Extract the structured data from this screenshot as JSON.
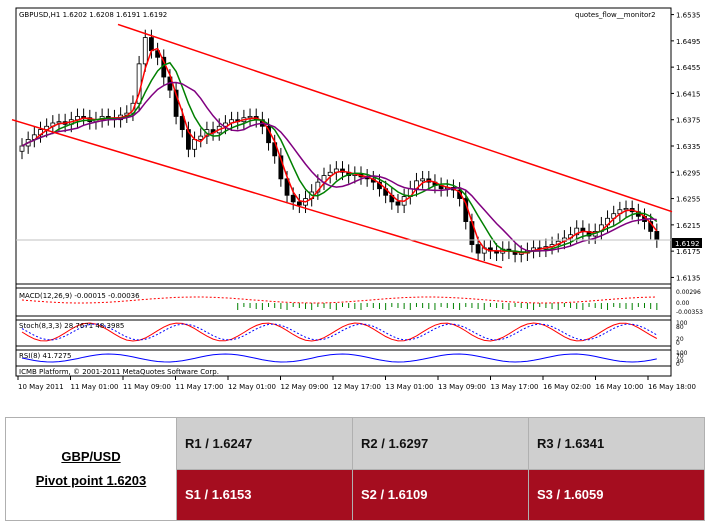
{
  "chart_data": {
    "type": "candlestick",
    "symbol_header": "GBPUSD,H1  1.6202 1.6208 1.6191 1.6192",
    "indicator_label": "quotes_flow__monitor2",
    "current_price_label": "1.6192",
    "copyright": "ICMB Platform, © 2001-2011 MetaQuotes Software Corp.",
    "price_axis": [
      "1.6535",
      "1.6495",
      "1.6455",
      "1.6415",
      "1.6375",
      "1.6335",
      "1.6295",
      "1.6255",
      "1.6215",
      "1.6175",
      "1.6135"
    ],
    "ylim": [
      1.6125,
      1.6545
    ],
    "time_axis": [
      "10 May 2011",
      "11 May 01:00",
      "11 May 09:00",
      "11 May 17:00",
      "12 May 01:00",
      "12 May 09:00",
      "12 May 17:00",
      "13 May 01:00",
      "13 May 09:00",
      "13 May 17:00",
      "16 May 02:00",
      "16 May 10:00",
      "16 May 18:00"
    ],
    "closes": [
      1.6335,
      1.6345,
      1.6352,
      1.636,
      1.6365,
      1.637,
      1.6372,
      1.6368,
      1.6375,
      1.638,
      1.6378,
      1.6372,
      1.6375,
      1.638,
      1.6378,
      1.6375,
      1.6382,
      1.6385,
      1.64,
      1.646,
      1.65,
      1.648,
      1.647,
      1.644,
      1.642,
      1.638,
      1.636,
      1.633,
      1.6345,
      1.635,
      1.636,
      1.6355,
      1.6365,
      1.637,
      1.6375,
      1.6372,
      1.6378,
      1.638,
      1.6375,
      1.6365,
      1.634,
      1.632,
      1.6285,
      1.626,
      1.625,
      1.6245,
      1.6255,
      1.6265,
      1.628,
      1.629,
      1.6295,
      1.63,
      1.6295,
      1.629,
      1.6292,
      1.6288,
      1.6285,
      1.628,
      1.627,
      1.626,
      1.625,
      1.6245,
      1.6258,
      1.627,
      1.6282,
      1.6285,
      1.628,
      1.6275,
      1.627,
      1.6272,
      1.6268,
      1.6255,
      1.622,
      1.6185,
      1.6172,
      1.618,
      1.6175,
      1.6172,
      1.6178,
      1.6175,
      1.617,
      1.6172,
      1.6176,
      1.618,
      1.6178,
      1.6182,
      1.6185,
      1.619,
      1.6195,
      1.62,
      1.621,
      1.6205,
      1.6198,
      1.6205,
      1.6215,
      1.6225,
      1.6232,
      1.6238,
      1.624,
      1.6235,
      1.6228,
      1.622,
      1.6205,
      1.6192
    ],
    "channel_upper": [
      [
        1.652,
        118
      ],
      [
        1.6235,
        672
      ]
    ],
    "channel_lower": [
      [
        1.6375,
        12
      ],
      [
        1.615,
        502
      ]
    ],
    "macd_label": "MACD(12,26,9) -0.00015 -0.00036",
    "macd_axis": [
      "0.00296",
      "0.00",
      "-0.00353"
    ],
    "stoch_label": "Stoch(8,3,3) 28.7671 48.3985",
    "stoch_axis": [
      "100",
      "80",
      "20",
      "0"
    ],
    "rsi_label": "RSI(8) 41.7275",
    "rsi_axis": [
      "100",
      "70",
      "30",
      "0"
    ]
  },
  "pivot_table": {
    "pair": "GBP/USD",
    "pivot": "Pivot point 1.6203",
    "r1": "R1 / 1.6247",
    "r2": "R2 / 1.6297",
    "r3": "R3 / 1.6341",
    "s1": "S1 / 1.6153",
    "s2": "S2 / 1.6109",
    "s3": "S3 / 1.6059"
  },
  "colors": {
    "channel": "#ff0000",
    "ma_fast": "#ff0000",
    "ma_mid": "#008000",
    "ma_slow": "#800080",
    "rsi": "#0000ff",
    "resistance_bg": "#cfcfcf",
    "support_bg": "#a50d1f"
  }
}
